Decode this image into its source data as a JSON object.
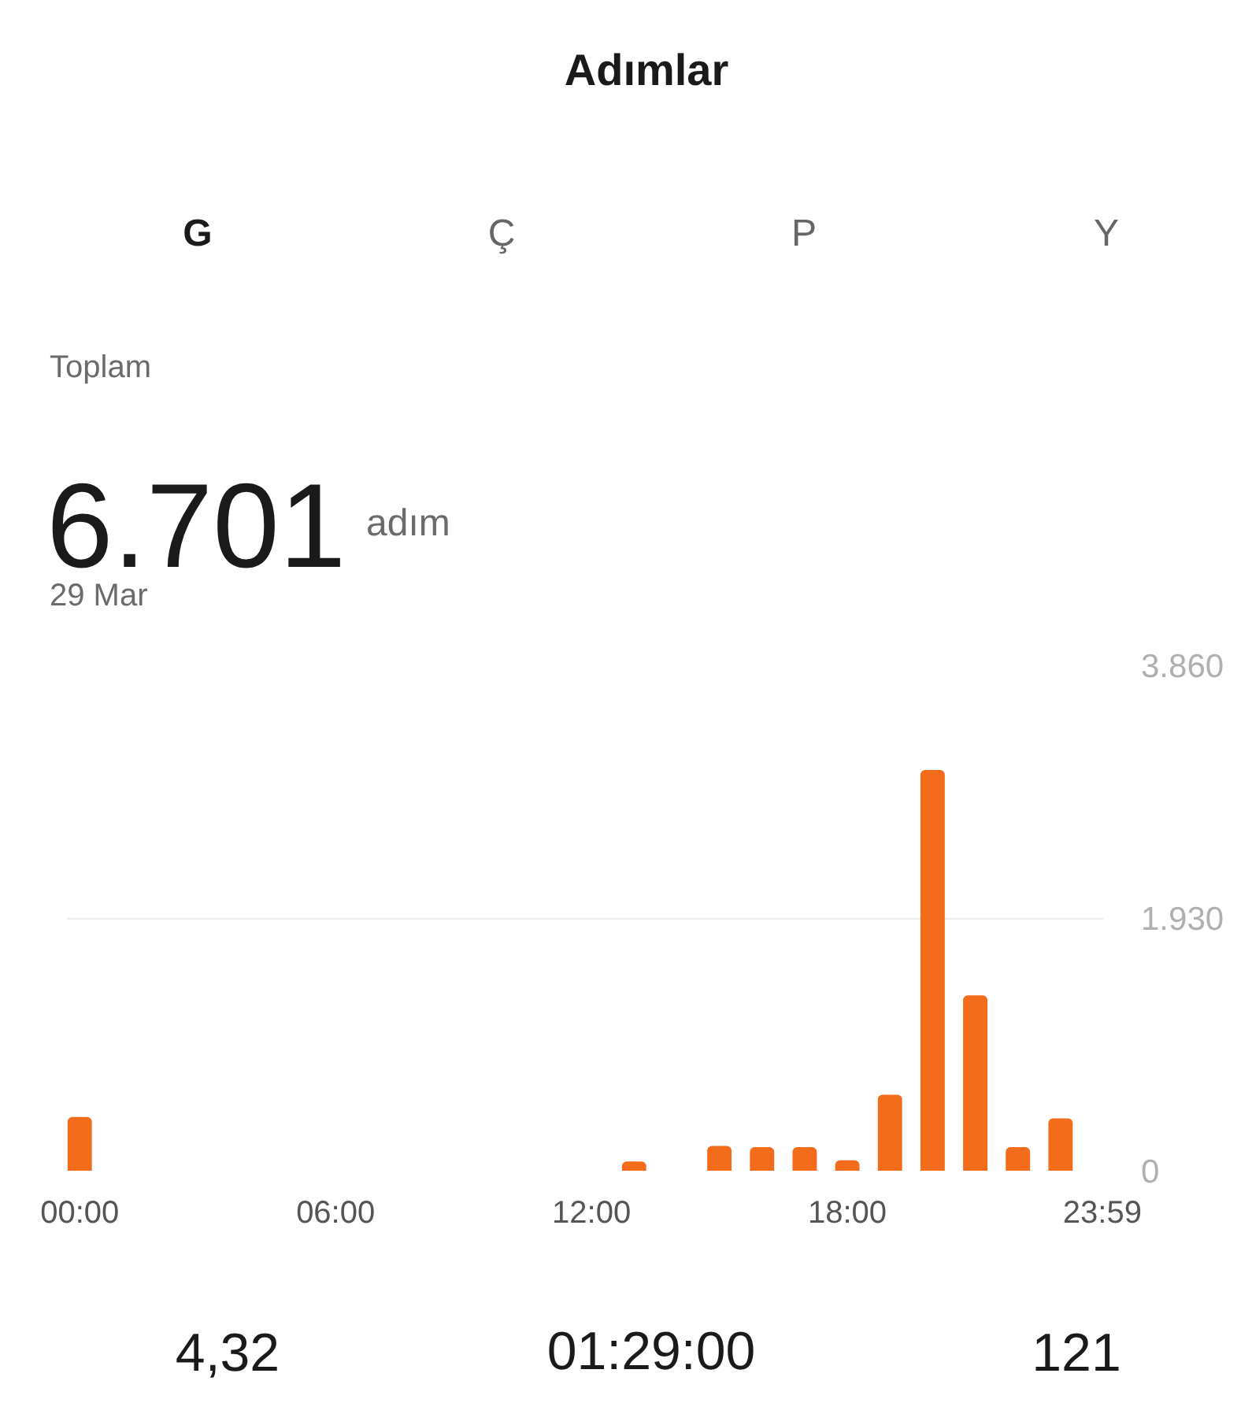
{
  "chart_data": {
    "type": "bar",
    "title": "Adımlar",
    "x": [
      0,
      13,
      15,
      16,
      17,
      18,
      19,
      20,
      21,
      22,
      23
    ],
    "values": [
      410,
      70,
      190,
      180,
      180,
      80,
      580,
      3060,
      1340,
      180,
      400
    ],
    "color": "#f36c1c",
    "xlim": [
      -0.3,
      24
    ],
    "xticks": [
      {
        "value": 0,
        "label": "00:00"
      },
      {
        "value": 6,
        "label": "06:00"
      },
      {
        "value": 12,
        "label": "12:00"
      },
      {
        "value": 18,
        "label": "18:00"
      },
      {
        "value": 23.98,
        "label": "23:59"
      }
    ],
    "ylim": [
      0,
      3860
    ],
    "yticks": [
      0,
      {
        "value": 1930,
        "label": "1.930"
      },
      {
        "value": 3860,
        "label": "3.860"
      }
    ],
    "grid": "y",
    "annotations": [
      "G",
      "Ç",
      "P",
      "Y",
      "Toplam",
      "6.701",
      "adım",
      "29 Mar",
      "4,32",
      "01:29:00",
      "121"
    ]
  }
}
